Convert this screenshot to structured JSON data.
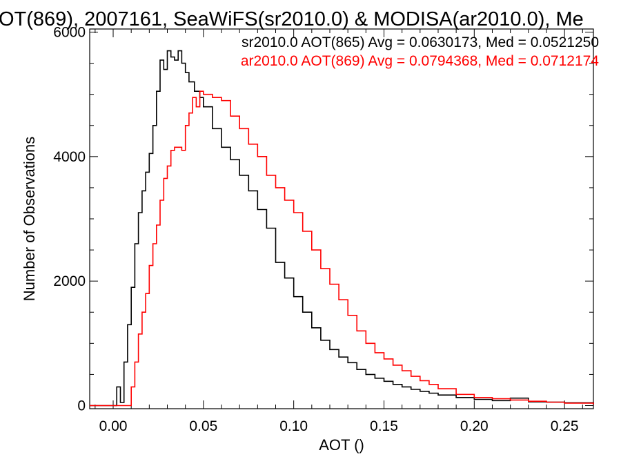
{
  "chart_data": {
    "type": "line",
    "title": "OT(869), 2007161, SeaWiFS(sr2010.0) & MODISA(ar2010.0), Me",
    "xlabel": "AOT ()",
    "ylabel": "Number of Observations",
    "xlim": [
      -0.013,
      0.266
    ],
    "ylim": [
      -50,
      6050
    ],
    "x_ticks": [
      0.0,
      0.05,
      0.1,
      0.15,
      0.2,
      0.25
    ],
    "x_tick_labels": [
      "0.00",
      "0.05",
      "0.10",
      "0.15",
      "0.20",
      "0.25"
    ],
    "y_ticks": [
      0,
      2000,
      4000,
      6000
    ],
    "y_tick_labels": [
      "0",
      "2000",
      "4000",
      "6000"
    ],
    "grid": false,
    "legend_position": "top-right",
    "series": [
      {
        "name": "sr2010.0 AOT(865) Avg = 0.0630173, Med = 0.0521250",
        "color": "#000000",
        "points": [
          [
            -0.013,
            0
          ],
          [
            0.0,
            0
          ],
          [
            0.002,
            300
          ],
          [
            0.004,
            50
          ],
          [
            0.006,
            700
          ],
          [
            0.008,
            1300
          ],
          [
            0.01,
            1900
          ],
          [
            0.012,
            2600
          ],
          [
            0.014,
            3100
          ],
          [
            0.016,
            3450
          ],
          [
            0.018,
            3750
          ],
          [
            0.02,
            4050
          ],
          [
            0.022,
            4500
          ],
          [
            0.024,
            5050
          ],
          [
            0.026,
            5550
          ],
          [
            0.028,
            5400
          ],
          [
            0.03,
            5700
          ],
          [
            0.032,
            5600
          ],
          [
            0.034,
            5550
          ],
          [
            0.036,
            5700
          ],
          [
            0.038,
            5500
          ],
          [
            0.04,
            5350
          ],
          [
            0.042,
            5200
          ],
          [
            0.045,
            5050
          ],
          [
            0.048,
            4950
          ],
          [
            0.05,
            4800
          ],
          [
            0.055,
            4450
          ],
          [
            0.06,
            4150
          ],
          [
            0.065,
            3950
          ],
          [
            0.07,
            3700
          ],
          [
            0.075,
            3450
          ],
          [
            0.08,
            3150
          ],
          [
            0.085,
            2850
          ],
          [
            0.09,
            2300
          ],
          [
            0.095,
            2050
          ],
          [
            0.1,
            1750
          ],
          [
            0.105,
            1500
          ],
          [
            0.11,
            1250
          ],
          [
            0.115,
            1050
          ],
          [
            0.12,
            900
          ],
          [
            0.125,
            780
          ],
          [
            0.13,
            690
          ],
          [
            0.135,
            580
          ],
          [
            0.14,
            500
          ],
          [
            0.145,
            440
          ],
          [
            0.15,
            390
          ],
          [
            0.155,
            340
          ],
          [
            0.16,
            300
          ],
          [
            0.165,
            260
          ],
          [
            0.17,
            230
          ],
          [
            0.175,
            200
          ],
          [
            0.18,
            170
          ],
          [
            0.19,
            130
          ],
          [
            0.2,
            100
          ],
          [
            0.21,
            80
          ],
          [
            0.22,
            120
          ],
          [
            0.23,
            60
          ],
          [
            0.24,
            55
          ],
          [
            0.25,
            45
          ],
          [
            0.266,
            20
          ]
        ]
      },
      {
        "name": "ar2010.0 AOT(869) Avg = 0.0794368, Med = 0.0712174",
        "color": "#ff0000",
        "points": [
          [
            -0.013,
            0
          ],
          [
            0.008,
            0
          ],
          [
            0.01,
            300
          ],
          [
            0.012,
            700
          ],
          [
            0.014,
            1150
          ],
          [
            0.016,
            1500
          ],
          [
            0.018,
            1800
          ],
          [
            0.02,
            2250
          ],
          [
            0.022,
            2600
          ],
          [
            0.024,
            2900
          ],
          [
            0.026,
            3300
          ],
          [
            0.028,
            3650
          ],
          [
            0.03,
            3850
          ],
          [
            0.032,
            4100
          ],
          [
            0.034,
            4150
          ],
          [
            0.036,
            4150
          ],
          [
            0.038,
            4100
          ],
          [
            0.04,
            4500
          ],
          [
            0.042,
            4700
          ],
          [
            0.044,
            4950
          ],
          [
            0.046,
            4800
          ],
          [
            0.048,
            5050
          ],
          [
            0.05,
            5000
          ],
          [
            0.055,
            4950
          ],
          [
            0.06,
            4900
          ],
          [
            0.065,
            4650
          ],
          [
            0.07,
            4450
          ],
          [
            0.075,
            4200
          ],
          [
            0.08,
            4000
          ],
          [
            0.085,
            3700
          ],
          [
            0.09,
            3500
          ],
          [
            0.095,
            3300
          ],
          [
            0.1,
            3100
          ],
          [
            0.105,
            2800
          ],
          [
            0.11,
            2500
          ],
          [
            0.115,
            2200
          ],
          [
            0.12,
            1950
          ],
          [
            0.125,
            1700
          ],
          [
            0.13,
            1450
          ],
          [
            0.135,
            1200
          ],
          [
            0.14,
            1000
          ],
          [
            0.145,
            850
          ],
          [
            0.15,
            750
          ],
          [
            0.155,
            650
          ],
          [
            0.16,
            560
          ],
          [
            0.165,
            470
          ],
          [
            0.17,
            400
          ],
          [
            0.175,
            340
          ],
          [
            0.18,
            270
          ],
          [
            0.19,
            180
          ],
          [
            0.2,
            130
          ],
          [
            0.21,
            110
          ],
          [
            0.22,
            90
          ],
          [
            0.23,
            70
          ],
          [
            0.24,
            55
          ],
          [
            0.25,
            40
          ],
          [
            0.266,
            20
          ]
        ]
      }
    ]
  }
}
